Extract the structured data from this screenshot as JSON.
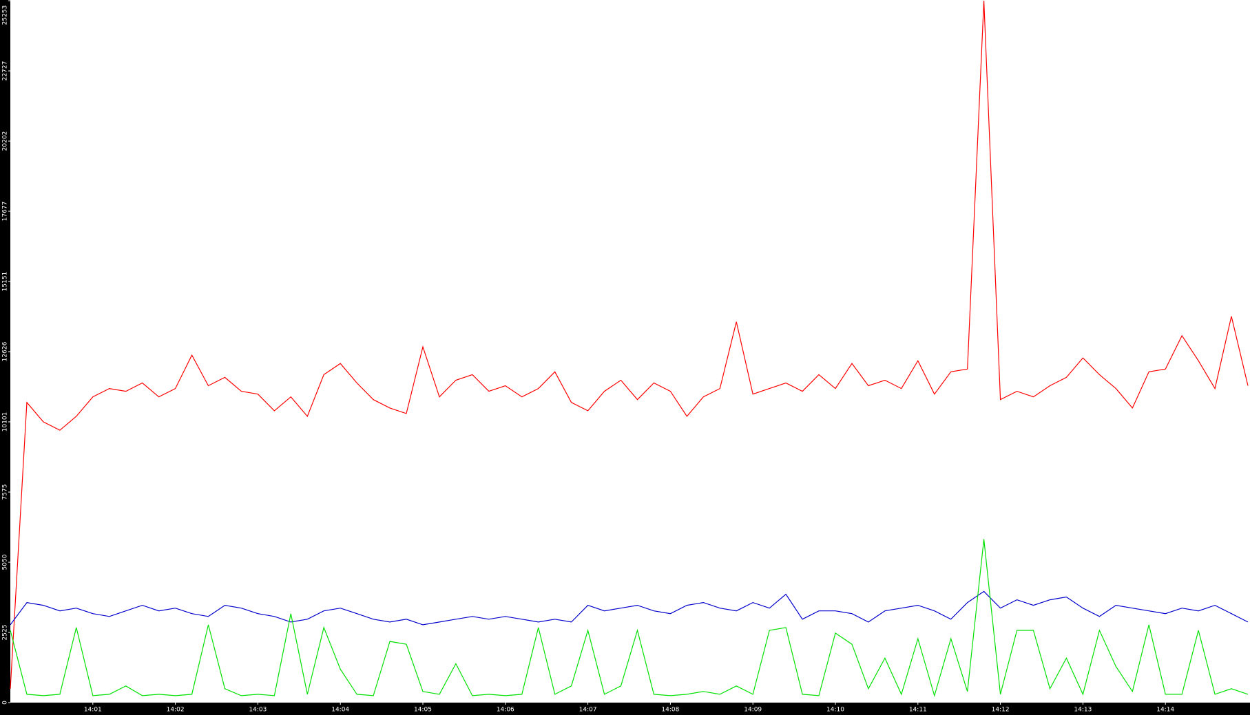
{
  "chart_data": {
    "type": "line",
    "x": [
      0,
      0.2,
      0.4,
      0.6,
      0.8,
      1,
      1.2,
      1.4,
      1.6,
      1.8,
      2,
      2.2,
      2.4,
      2.6,
      2.8,
      3,
      3.2,
      3.4,
      3.6,
      3.8,
      4,
      4.2,
      4.4,
      4.6,
      4.8,
      5,
      5.2,
      5.4,
      5.6,
      5.8,
      6,
      6.2,
      6.4,
      6.6,
      6.8,
      7,
      7.2,
      7.4,
      7.6,
      7.8,
      8,
      8.2,
      8.4,
      8.6,
      8.8,
      9,
      9.2,
      9.4,
      9.6,
      9.8,
      10,
      10.2,
      10.4,
      10.6,
      10.8,
      11,
      11.2,
      11.4,
      11.6,
      11.8,
      12,
      12.2,
      12.4,
      12.6,
      12.8,
      13,
      13.2,
      13.4,
      13.6,
      13.8,
      14,
      14.2,
      14.4,
      14.6,
      14.8,
      15
    ],
    "series": [
      {
        "color": "#ff0000",
        "values": [
          500,
          10800,
          10100,
          9800,
          10300,
          11000,
          11300,
          11200,
          11500,
          11000,
          11300,
          12500,
          11400,
          11700,
          11200,
          11100,
          10500,
          11000,
          10300,
          11800,
          12200,
          11500,
          10900,
          10600,
          10400,
          12800,
          11000,
          11600,
          11800,
          11200,
          11400,
          11000,
          11300,
          11900,
          10800,
          10500,
          11200,
          11600,
          10900,
          11500,
          11200,
          10300,
          11000,
          11300,
          13700,
          11100,
          11300,
          11500,
          11200,
          11800,
          11300,
          12200,
          11400,
          11600,
          11300,
          12300,
          11100,
          11900,
          12000,
          25253,
          10900,
          11200,
          11000,
          11400,
          11700,
          12400,
          11800,
          11300,
          10600,
          11900,
          12000,
          13200,
          12300,
          11300,
          13900,
          11400
        ]
      },
      {
        "color": "#0000cc",
        "values": [
          2800,
          3600,
          3500,
          3300,
          3400,
          3200,
          3100,
          3300,
          3500,
          3300,
          3400,
          3200,
          3100,
          3500,
          3400,
          3200,
          3100,
          2900,
          3000,
          3300,
          3400,
          3200,
          3000,
          2900,
          3000,
          2800,
          2900,
          3000,
          3100,
          3000,
          3100,
          3000,
          2900,
          3000,
          2900,
          3500,
          3300,
          3400,
          3500,
          3300,
          3200,
          3500,
          3600,
          3400,
          3300,
          3600,
          3400,
          3900,
          3000,
          3300,
          3300,
          3200,
          2900,
          3300,
          3400,
          3500,
          3300,
          3000,
          3600,
          4000,
          3400,
          3700,
          3500,
          3700,
          3800,
          3400,
          3100,
          3500,
          3400,
          3300,
          3200,
          3400,
          3300,
          3500,
          3200,
          2900
        ]
      },
      {
        "color": "#00e000",
        "values": [
          2600,
          300,
          250,
          300,
          2700,
          250,
          300,
          600,
          250,
          300,
          250,
          300,
          2800,
          500,
          250,
          300,
          250,
          3200,
          300,
          2700,
          1200,
          300,
          250,
          2200,
          2100,
          400,
          300,
          1400,
          250,
          300,
          250,
          300,
          2700,
          300,
          600,
          2600,
          300,
          600,
          2600,
          300,
          250,
          300,
          400,
          300,
          600,
          300,
          2600,
          2700,
          300,
          250,
          2500,
          2100,
          500,
          1600,
          300,
          2300,
          250,
          2300,
          400,
          5880,
          300,
          2600,
          2600,
          500,
          1600,
          300,
          2600,
          1300,
          400,
          2800,
          300,
          300,
          2600,
          300,
          500,
          300
        ]
      }
    ],
    "xlim": [
      0,
      15
    ],
    "xticks": [
      {
        "value": 1,
        "label": "14:01"
      },
      {
        "value": 2,
        "label": "14:02"
      },
      {
        "value": 3,
        "label": "14:03"
      },
      {
        "value": 4,
        "label": "14:04"
      },
      {
        "value": 5,
        "label": "14:05"
      },
      {
        "value": 6,
        "label": "14:06"
      },
      {
        "value": 7,
        "label": "14:07"
      },
      {
        "value": 8,
        "label": "14:08"
      },
      {
        "value": 9,
        "label": "14:09"
      },
      {
        "value": 10,
        "label": "14:10"
      },
      {
        "value": 11,
        "label": "14:11"
      },
      {
        "value": 12,
        "label": "14:12"
      },
      {
        "value": 13,
        "label": "14:13"
      },
      {
        "value": 14,
        "label": "14:14"
      }
    ],
    "ylim": [
      0,
      25253
    ],
    "yticks": [
      0,
      2525,
      5050,
      7575,
      10101,
      12626,
      15151,
      17677,
      20202,
      22727,
      25253
    ],
    "grid": false
  }
}
